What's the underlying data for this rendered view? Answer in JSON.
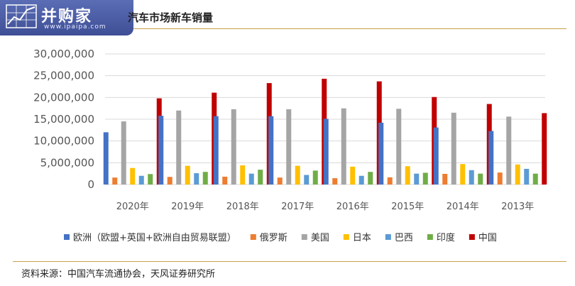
{
  "brand": {
    "logo_text": "并购家",
    "logo_url": "www.ipaipa.com"
  },
  "header": {
    "title": "汽车市场新车销量"
  },
  "footer": {
    "source": "资料来源：中国汽车流通协会，天风证券研究所"
  },
  "colors": {
    "brand_bg": "#4658a5",
    "rule": "#c9a04a"
  },
  "chart_data": {
    "type": "bar",
    "categories": [
      "2020年",
      "2019年",
      "2018年",
      "2017年",
      "2016年",
      "2015年",
      "2014年",
      "2013年"
    ],
    "ylim": [
      0,
      30000000
    ],
    "yticks": [
      0,
      5000000,
      10000000,
      15000000,
      20000000,
      25000000,
      30000000
    ],
    "ytick_labels": [
      "0",
      "5,000,000",
      "10,000,000",
      "15,000,000",
      "20,000,000",
      "25,000,000",
      "30,000,000"
    ],
    "grid": true,
    "legend_position": "bottom",
    "series": [
      {
        "name": "欧洲（欧盟+英国+欧洲自由贸易联盟）",
        "color": "#4472c4",
        "values": [
          12000000,
          15800000,
          15700000,
          15700000,
          15100000,
          14200000,
          13100000,
          12300000
        ]
      },
      {
        "name": "俄罗斯",
        "color": "#ed7d31",
        "values": [
          1600000,
          1750000,
          1800000,
          1600000,
          1450000,
          1650000,
          2450000,
          2750000
        ]
      },
      {
        "name": "美国",
        "color": "#a5a5a5",
        "values": [
          14500000,
          17000000,
          17300000,
          17300000,
          17500000,
          17400000,
          16500000,
          15600000
        ]
      },
      {
        "name": "日本",
        "color": "#ffc000",
        "values": [
          3800000,
          4300000,
          4400000,
          4300000,
          4100000,
          4200000,
          4700000,
          4600000
        ]
      },
      {
        "name": "巴西",
        "color": "#5b9bd5",
        "values": [
          2000000,
          2600000,
          2500000,
          2200000,
          2000000,
          2500000,
          3300000,
          3600000
        ]
      },
      {
        "name": "印度",
        "color": "#70ad47",
        "values": [
          2400000,
          2900000,
          3400000,
          3200000,
          2900000,
          2700000,
          2500000,
          2500000
        ]
      },
      {
        "name": "中国",
        "color": "#c00000",
        "values": [
          19800000,
          21100000,
          23300000,
          24300000,
          23700000,
          20100000,
          18500000,
          16400000
        ]
      }
    ]
  }
}
